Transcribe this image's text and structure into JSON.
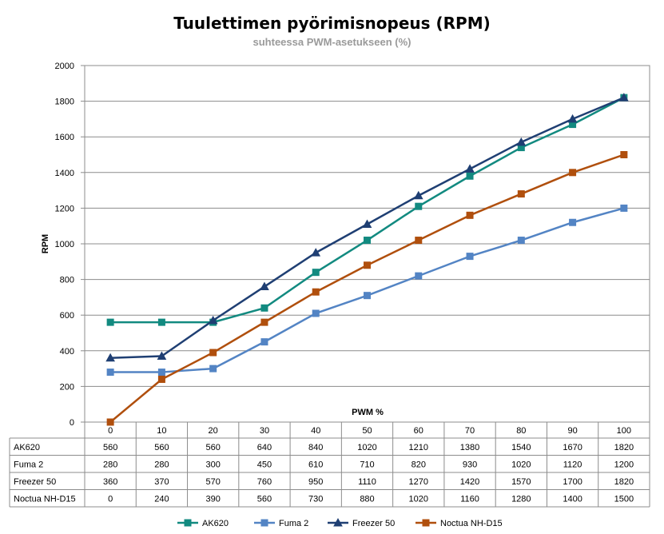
{
  "chart_data": {
    "type": "line",
    "title": "Tuulettimen pyörimisnopeus (RPM)",
    "subtitle": "suhteessa PWM-asetukseen (%)",
    "xlabel": "PWM %",
    "ylabel": "RPM",
    "x": [
      "0",
      "10",
      "20",
      "30",
      "40",
      "50",
      "60",
      "70",
      "80",
      "90",
      "100"
    ],
    "ylim": [
      0,
      2000
    ],
    "yticks": [
      "0",
      "200",
      "400",
      "600",
      "800",
      "1000",
      "1200",
      "1400",
      "1600",
      "1800",
      "2000"
    ],
    "grid": true,
    "legend_position": "bottom",
    "data_table": true,
    "series": [
      {
        "name": "AK620",
        "color": "#128a80",
        "marker": "square",
        "values": [
          560,
          560,
          560,
          640,
          840,
          1020,
          1210,
          1380,
          1540,
          1670,
          1820
        ]
      },
      {
        "name": "Fuma 2",
        "color": "#5384c4",
        "marker": "square",
        "values": [
          280,
          280,
          300,
          450,
          610,
          710,
          820,
          930,
          1020,
          1120,
          1200
        ]
      },
      {
        "name": "Freezer 50",
        "color": "#1f3f73",
        "marker": "triangle",
        "values": [
          360,
          370,
          570,
          760,
          950,
          1110,
          1270,
          1420,
          1570,
          1700,
          1820
        ]
      },
      {
        "name": "Noctua NH-D15",
        "color": "#b04f0d",
        "marker": "square",
        "values": [
          0,
          240,
          390,
          560,
          730,
          880,
          1020,
          1160,
          1280,
          1400,
          1500
        ]
      }
    ]
  }
}
